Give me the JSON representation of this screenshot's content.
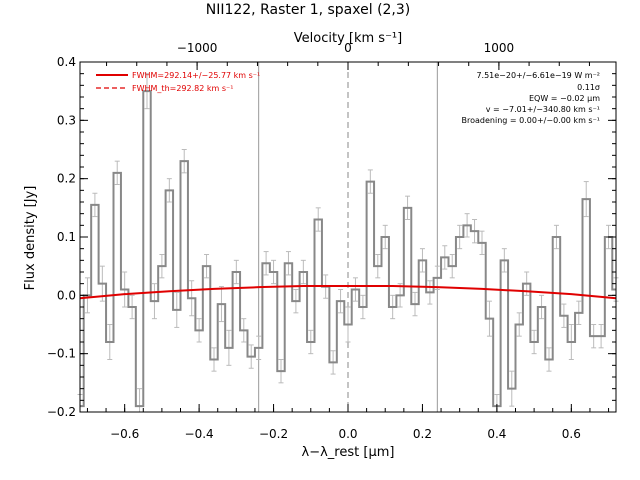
{
  "chart_data": {
    "type": "line",
    "title": "NII122, Raster 1, spaxel (2,3)",
    "xlabel": "λ−λ_rest [μm]",
    "ylabel": "Flux density [Jy]",
    "top_axis_label": "Velocity [km s⁻¹]",
    "xlim": [
      -0.72,
      0.72
    ],
    "ylim": [
      -0.2,
      0.4
    ],
    "top_xlim_km_s": [
      -1776,
      1776
    ],
    "x_ticks": [
      -0.6,
      -0.4,
      -0.2,
      0.0,
      0.2,
      0.4,
      0.6
    ],
    "x_tick_labels": [
      "−0.6",
      "−0.4",
      "−0.2",
      "0.0",
      "0.2",
      "0.4",
      "0.6"
    ],
    "y_ticks": [
      -0.2,
      -0.1,
      0.0,
      0.1,
      0.2,
      0.3,
      0.4
    ],
    "y_tick_labels": [
      "−0.2",
      "−0.1",
      "0.0",
      "0.1",
      "0.2",
      "0.3",
      "0.4"
    ],
    "top_ticks": [
      -1000,
      0,
      1000
    ],
    "top_tick_labels": [
      "−1000",
      "0",
      "1000"
    ],
    "vlines_x": [
      -0.24,
      0.0,
      0.24
    ],
    "legend": {
      "position": "top-left",
      "entries": [
        {
          "label": "FWHM=292.14+/−25.77 km s⁻¹",
          "color": "#e00000",
          "style": "solid"
        },
        {
          "label": "FWHM_th=292.82 km s⁻¹",
          "color": "#e00000",
          "style": "dashed"
        }
      ]
    },
    "annotations": [
      "7.51e−20+/−6.61e−19 W m⁻²",
      "0.11σ",
      "EQW = −0.02 μm",
      "v = −7.01+/−340.80 km s⁻¹",
      "Broadening = 0.00+/−0.00 km s⁻¹"
    ],
    "series": [
      {
        "color": "#888888",
        "style": "histogram",
        "x": [
          -0.72,
          -0.7,
          -0.68,
          -0.66,
          -0.64,
          -0.62,
          -0.6,
          -0.58,
          -0.56,
          -0.54,
          -0.52,
          -0.5,
          -0.48,
          -0.46,
          -0.44,
          -0.42,
          -0.4,
          -0.38,
          -0.36,
          -0.34,
          -0.32,
          -0.3,
          -0.28,
          -0.26,
          -0.24,
          -0.22,
          -0.2,
          -0.18,
          -0.16,
          -0.14,
          -0.12,
          -0.1,
          -0.08,
          -0.06,
          -0.04,
          -0.02,
          0.0,
          0.02,
          0.04,
          0.06,
          0.08,
          0.1,
          0.12,
          0.14,
          0.16,
          0.18,
          0.2,
          0.22,
          0.24,
          0.26,
          0.28,
          0.3,
          0.32,
          0.34,
          0.36,
          0.38,
          0.4,
          0.42,
          0.44,
          0.46,
          0.48,
          0.5,
          0.52,
          0.54,
          0.56,
          0.58,
          0.6,
          0.62,
          0.64,
          0.66,
          0.68,
          0.7,
          0.72
        ],
        "y": [
          -0.19,
          0.0,
          0.155,
          0.02,
          -0.08,
          0.21,
          0.01,
          -0.02,
          -0.19,
          0.35,
          -0.01,
          0.05,
          0.18,
          -0.025,
          0.23,
          -0.005,
          -0.06,
          0.05,
          -0.11,
          -0.015,
          -0.09,
          0.04,
          -0.06,
          -0.105,
          -0.09,
          0.055,
          0.04,
          -0.13,
          0.055,
          -0.01,
          0.04,
          -0.08,
          0.13,
          0.015,
          -0.115,
          -0.01,
          -0.05,
          0.01,
          -0.02,
          0.195,
          0.05,
          0.1,
          -0.02,
          0.0,
          0.15,
          -0.015,
          0.06,
          0.005,
          0.03,
          0.065,
          0.05,
          0.1,
          0.12,
          0.11,
          0.09,
          -0.04,
          -0.19,
          0.06,
          -0.16,
          -0.05,
          0.02,
          -0.08,
          -0.02,
          -0.11,
          0.1,
          -0.035,
          -0.08,
          -0.03,
          0.165,
          -0.07,
          -0.07,
          0.1,
          0.01
        ],
        "err": [
          0.02,
          0.03,
          0.02,
          0.03,
          0.03,
          0.02,
          0.03,
          0.02,
          0.03,
          0.03,
          0.03,
          0.02,
          0.02,
          0.03,
          0.02,
          0.03,
          0.02,
          0.02,
          0.02,
          0.03,
          0.03,
          0.02,
          0.02,
          0.02,
          0.02,
          0.02,
          0.02,
          0.02,
          0.02,
          0.02,
          0.02,
          0.02,
          0.02,
          0.02,
          0.02,
          0.02,
          0.03,
          0.02,
          0.02,
          0.02,
          0.02,
          0.02,
          0.02,
          0.02,
          0.02,
          0.02,
          0.02,
          0.02,
          0.02,
          0.02,
          0.02,
          0.02,
          0.02,
          0.02,
          0.02,
          0.03,
          0.02,
          0.02,
          0.03,
          0.02,
          0.02,
          0.02,
          0.02,
          0.02,
          0.02,
          0.02,
          0.03,
          0.02,
          0.03,
          0.02,
          0.02,
          0.02,
          0.02
        ]
      },
      {
        "color": "#e00000",
        "style": "solid",
        "x": [
          -0.72,
          -0.6,
          -0.48,
          -0.36,
          -0.24,
          -0.12,
          0.0,
          0.12,
          0.24,
          0.36,
          0.48,
          0.6,
          0.72
        ],
        "y": [
          -0.005,
          0.002,
          0.007,
          0.011,
          0.014,
          0.016,
          0.016,
          0.016,
          0.014,
          0.011,
          0.007,
          0.002,
          -0.005
        ]
      }
    ]
  }
}
